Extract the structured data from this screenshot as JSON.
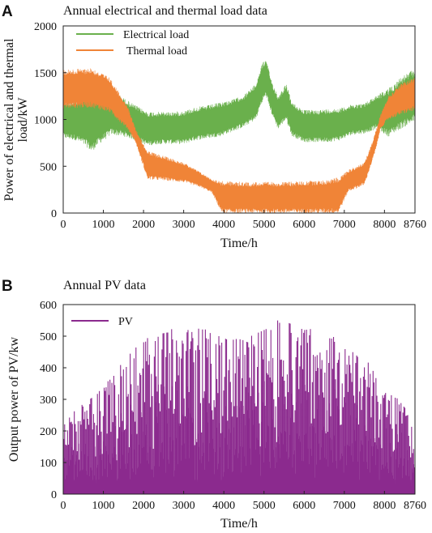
{
  "chart_data": [
    {
      "panel_letter": "A",
      "type": "line",
      "title": "Annual electrical and thermal load data",
      "xlabel": "Time/h",
      "ylabel": [
        "Power of electrical and thermal",
        "load/kW"
      ],
      "xlim": [
        0,
        8760
      ],
      "ylim": [
        0,
        2000
      ],
      "x_ticks": [
        "0",
        "1000",
        "2000",
        "3000",
        "4000",
        "5000",
        "6000",
        "7000",
        "8000",
        "8760"
      ],
      "x_tick_values": [
        0,
        1000,
        2000,
        3000,
        4000,
        5000,
        6000,
        7000,
        8000,
        8760
      ],
      "y_ticks": [
        "0",
        "500",
        "1000",
        "1500",
        "2000"
      ],
      "y_tick_values": [
        0,
        500,
        1000,
        1500,
        2000
      ],
      "legend_position": "top-left",
      "grid": false,
      "series": [
        {
          "name": "Electrical load",
          "color": "#6ab04c",
          "x": [
            0,
            300,
            600,
            700,
            900,
            1200,
            1500,
            1800,
            2100,
            2400,
            2700,
            3000,
            3300,
            3600,
            3900,
            4200,
            4500,
            4800,
            4950,
            5050,
            5200,
            5350,
            5550,
            5700,
            6000,
            6300,
            6600,
            6900,
            7200,
            7500,
            7800,
            8100,
            8400,
            8760
          ],
          "low": [
            800,
            780,
            700,
            650,
            740,
            840,
            820,
            780,
            720,
            740,
            740,
            740,
            780,
            800,
            820,
            870,
            920,
            1000,
            1180,
            1250,
            1050,
            900,
            1000,
            820,
            760,
            760,
            760,
            780,
            840,
            850,
            900,
            820,
            900,
            980
          ],
          "high": [
            1200,
            1200,
            1300,
            1250,
            1280,
            1320,
            1230,
            1150,
            1080,
            1080,
            1080,
            1090,
            1130,
            1150,
            1180,
            1210,
            1260,
            1380,
            1600,
            1640,
            1400,
            1250,
            1380,
            1180,
            1100,
            1100,
            1110,
            1120,
            1160,
            1170,
            1260,
            1330,
            1450,
            1540
          ]
        },
        {
          "name": "Thermal load",
          "color": "#f08437",
          "x": [
            0,
            700,
            1150,
            1600,
            1800,
            2100,
            2500,
            3000,
            3400,
            3700,
            3950,
            4500,
            5000,
            5500,
            6000,
            6500,
            6850,
            7100,
            7500,
            7700,
            7800,
            7900,
            8100,
            8400,
            8760
          ],
          "low": [
            1120,
            1130,
            1080,
            900,
            760,
            360,
            350,
            330,
            280,
            220,
            0,
            0,
            0,
            0,
            0,
            0,
            0,
            230,
            300,
            560,
            700,
            900,
            1000,
            1050,
            1100
          ],
          "high": [
            1530,
            1550,
            1450,
            1150,
            900,
            660,
            610,
            540,
            440,
            360,
            340,
            330,
            330,
            330,
            340,
            350,
            380,
            460,
            540,
            760,
            900,
            1050,
            1250,
            1380,
            1450
          ]
        }
      ]
    },
    {
      "panel_letter": "B",
      "type": "bar",
      "title": "Annual PV data",
      "xlabel": "Time/h",
      "ylabel": [
        "Output power of PV/kw"
      ],
      "xlim": [
        0,
        8760
      ],
      "ylim": [
        0,
        600
      ],
      "x_ticks": [
        "0",
        "1000",
        "2000",
        "3000",
        "4000",
        "5000",
        "6000",
        "7000",
        "8000",
        "8760"
      ],
      "x_tick_values": [
        0,
        1000,
        2000,
        3000,
        4000,
        5000,
        6000,
        7000,
        8000,
        8760
      ],
      "y_ticks": [
        "0",
        "100",
        "200",
        "300",
        "400",
        "500",
        "600"
      ],
      "y_tick_values": [
        0,
        100,
        200,
        300,
        400,
        500,
        600
      ],
      "legend_position": "top-left",
      "grid": false,
      "series": [
        {
          "name": "PV",
          "color": "#8b2a8e",
          "note_daily_peak_envelope_x": [
            0,
            500,
            1000,
            1500,
            2000,
            2500,
            3000,
            3500,
            4000,
            4500,
            5000,
            5500,
            6000,
            6500,
            7000,
            7500,
            8000,
            8500,
            8760
          ],
          "note_daily_peak_envelope_y": [
            240,
            290,
            340,
            430,
            500,
            520,
            530,
            530,
            500,
            500,
            530,
            560,
            530,
            540,
            470,
            430,
            360,
            280,
            200
          ]
        }
      ]
    }
  ]
}
